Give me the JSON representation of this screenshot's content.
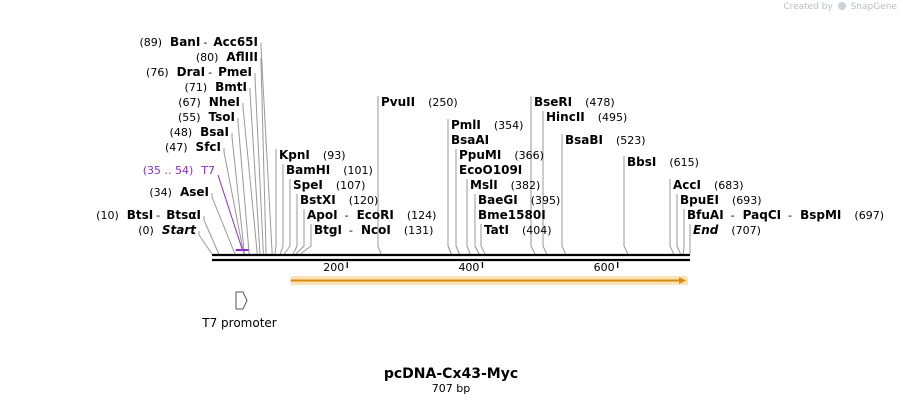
{
  "credit": {
    "text": "Created by",
    "brand": "SnapGene"
  },
  "title": "pcDNA-Cx43-Myc",
  "length_label": "707 bp",
  "length": 707,
  "ticks": [
    {
      "pos": 200,
      "label": "200"
    },
    {
      "pos": 400,
      "label": "400"
    },
    {
      "pos": 600,
      "label": "600"
    }
  ],
  "left_sites": [
    {
      "id": "banI",
      "pos_text": "(89)",
      "names": [
        "BanI",
        "Acc65I"
      ],
      "cut": 89
    },
    {
      "id": "aflIII",
      "pos_text": "(80)",
      "names": [
        "AflIII"
      ],
      "cut": 80
    },
    {
      "id": "draI",
      "pos_text": "(76)",
      "names": [
        "DraI",
        "PmeI"
      ],
      "cut": 76
    },
    {
      "id": "bmtI",
      "pos_text": "(71)",
      "names": [
        "BmtI"
      ],
      "cut": 71
    },
    {
      "id": "nheI",
      "pos_text": "(67)",
      "names": [
        "NheI"
      ],
      "cut": 67
    },
    {
      "id": "tsoI",
      "pos_text": "(55)",
      "names": [
        "TsoI"
      ],
      "cut": 55
    },
    {
      "id": "bsaI",
      "pos_text": "(48)",
      "names": [
        "BsaI"
      ],
      "cut": 48
    },
    {
      "id": "sfcI",
      "pos_text": "(47)",
      "names": [
        "SfcI"
      ],
      "cut": 47
    },
    {
      "id": "t7",
      "pos_text": "(35 .. 54)",
      "names": [
        "T7"
      ],
      "cut": 44,
      "primer": true
    },
    {
      "id": "aseI",
      "pos_text": "(34)",
      "names": [
        "AseI"
      ],
      "cut": 34
    },
    {
      "id": "btsI",
      "pos_text": "(10)",
      "names": [
        "BtsI",
        "BtsαI"
      ],
      "cut": 10
    },
    {
      "id": "start",
      "pos_text": "(0)",
      "names": [
        "Start"
      ],
      "cut": 0,
      "italic": true
    }
  ],
  "right_sites": [
    {
      "id": "kpnI",
      "names": [
        "KpnI"
      ],
      "pos_text": "(93)",
      "cut": 93
    },
    {
      "id": "bamHI",
      "names": [
        "BamHI"
      ],
      "pos_text": "(101)",
      "cut": 101
    },
    {
      "id": "speI",
      "names": [
        "SpeI"
      ],
      "pos_text": "(107)",
      "cut": 107
    },
    {
      "id": "bstXI",
      "names": [
        "BstXI"
      ],
      "pos_text": "(120)",
      "cut": 120
    },
    {
      "id": "apoI",
      "names": [
        "ApoI",
        "EcoRI"
      ],
      "pos_text": "(124)",
      "cut": 124
    },
    {
      "id": "btgI",
      "names": [
        "BtgI",
        "NcoI"
      ],
      "pos_text": "(131)",
      "cut": 131
    },
    {
      "id": "pvuII",
      "names": [
        "PvuII"
      ],
      "pos_text": "(250)",
      "cut": 250
    },
    {
      "id": "pmlI",
      "names": [
        "PmlI"
      ],
      "pos_text": "(354)",
      "cut": 354
    },
    {
      "id": "bsaAI",
      "names": [
        "BsaAI"
      ],
      "pos_text": "",
      "cut": 354
    },
    {
      "id": "ppuMI",
      "names": [
        "PpuMI"
      ],
      "pos_text": "(366)",
      "cut": 366
    },
    {
      "id": "ecoO109I",
      "names": [
        "EcoO109I"
      ],
      "pos_text": "",
      "cut": 366
    },
    {
      "id": "mslI",
      "names": [
        "MslI"
      ],
      "pos_text": "(382)",
      "cut": 382
    },
    {
      "id": "baeGI",
      "names": [
        "BaeGI"
      ],
      "pos_text": "(395)",
      "cut": 395
    },
    {
      "id": "bme1580I",
      "names": [
        "Bme1580I"
      ],
      "pos_text": "",
      "cut": 395
    },
    {
      "id": "tatI",
      "names": [
        "TatI"
      ],
      "pos_text": "(404)",
      "cut": 404
    },
    {
      "id": "bseRI",
      "names": [
        "BseRI"
      ],
      "pos_text": "(478)",
      "cut": 478
    },
    {
      "id": "hincII",
      "names": [
        "HincII"
      ],
      "pos_text": "(495)",
      "cut": 495
    },
    {
      "id": "bsaBI",
      "names": [
        "BsaBI"
      ],
      "pos_text": "(523)",
      "cut": 523
    },
    {
      "id": "bbsI",
      "names": [
        "BbsI"
      ],
      "pos_text": "(615)",
      "cut": 615
    },
    {
      "id": "accI",
      "names": [
        "AccI"
      ],
      "pos_text": "(683)",
      "cut": 683
    },
    {
      "id": "bpuEI",
      "names": [
        "BpuEI"
      ],
      "pos_text": "(693)",
      "cut": 693
    },
    {
      "id": "bfuAI",
      "names": [
        "BfuAI",
        "PaqCI",
        "BspMI"
      ],
      "pos_text": "(697)",
      "cut": 697
    },
    {
      "id": "end",
      "names": [
        "End"
      ],
      "pos_text": "(707)",
      "cut": 707,
      "italic": true
    }
  ],
  "features": [
    {
      "id": "t7-promoter",
      "label": "T7 promoter",
      "color": "#ffffff"
    },
    {
      "id": "orf",
      "label": "",
      "start": 131,
      "end": 707,
      "color": "#f5a623"
    }
  ],
  "colors": {
    "backbone": "#000000",
    "primer": "#8e2bd1",
    "orf": "#f5a623",
    "leader": "#999999"
  }
}
